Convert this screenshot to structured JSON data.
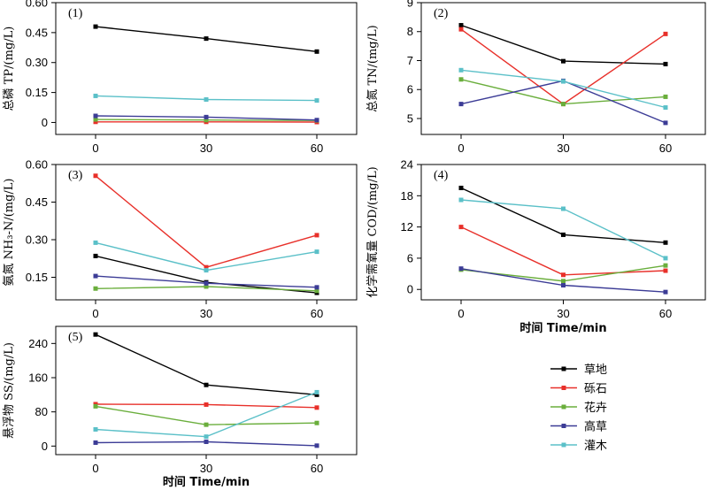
{
  "chart_data": [
    {
      "type": "line",
      "panel_label": "(1)",
      "ylabel": "总磷 TP/(mg/L)",
      "xlabel": "",
      "x": [
        0,
        30,
        60
      ],
      "xticks": [
        "0",
        "30",
        "60"
      ],
      "ylim": [
        -0.06,
        0.6
      ],
      "yticks": [
        0,
        0.15,
        0.3,
        0.45,
        0.6
      ],
      "ytick_labels": [
        "0",
        "0.15",
        "0.30",
        "0.45",
        "0.60"
      ],
      "series": [
        {
          "name": "草地",
          "color": "#000000",
          "values": [
            0.48,
            0.42,
            0.355
          ]
        },
        {
          "name": "砾石",
          "color": "#e8302a",
          "values": [
            0.003,
            0.003,
            0.002
          ]
        },
        {
          "name": "花卉",
          "color": "#6aae3c",
          "values": [
            0.015,
            0.012,
            0.01
          ]
        },
        {
          "name": "高草",
          "color": "#3c3c96",
          "values": [
            0.033,
            0.027,
            0.012
          ]
        },
        {
          "name": "灌木",
          "color": "#5bc0c8",
          "values": [
            0.133,
            0.115,
            0.11
          ]
        }
      ]
    },
    {
      "type": "line",
      "panel_label": "(2)",
      "ylabel": "总氮 TN/(mg/L)",
      "xlabel": "",
      "x": [
        0,
        30,
        60
      ],
      "xticks": [
        "0",
        "30",
        "60"
      ],
      "ylim": [
        4.45,
        9
      ],
      "yticks": [
        5,
        6,
        7,
        8,
        9
      ],
      "ytick_labels": [
        "5",
        "6",
        "7",
        "8",
        "9"
      ],
      "series": [
        {
          "name": "草地",
          "color": "#000000",
          "values": [
            8.22,
            6.98,
            6.88
          ]
        },
        {
          "name": "砾石",
          "color": "#e8302a",
          "values": [
            8.08,
            5.5,
            7.92
          ]
        },
        {
          "name": "花卉",
          "color": "#6aae3c",
          "values": [
            6.35,
            5.5,
            5.75
          ]
        },
        {
          "name": "高草",
          "color": "#3c3c96",
          "values": [
            5.5,
            6.3,
            4.85
          ]
        },
        {
          "name": "灌木",
          "color": "#5bc0c8",
          "values": [
            6.67,
            6.28,
            5.38
          ]
        }
      ]
    },
    {
      "type": "line",
      "panel_label": "(3)",
      "ylabel": "氨氮 NH₃-N/(mg/L)",
      "xlabel": "",
      "x": [
        0,
        30,
        60
      ],
      "xticks": [
        "0",
        "30",
        "60"
      ],
      "ylim": [
        0.06,
        0.6
      ],
      "yticks": [
        0.15,
        0.3,
        0.45,
        0.6
      ],
      "ytick_labels": [
        "0.15",
        "0.30",
        "0.45",
        "0.60"
      ],
      "series": [
        {
          "name": "草地",
          "color": "#000000",
          "values": [
            0.235,
            0.13,
            0.088
          ]
        },
        {
          "name": "砾石",
          "color": "#e8302a",
          "values": [
            0.555,
            0.19,
            0.318
          ]
        },
        {
          "name": "花卉",
          "color": "#6aae3c",
          "values": [
            0.105,
            0.113,
            0.096
          ]
        },
        {
          "name": "高草",
          "color": "#3c3c96",
          "values": [
            0.155,
            0.126,
            0.11
          ]
        },
        {
          "name": "灌木",
          "color": "#5bc0c8",
          "values": [
            0.288,
            0.178,
            0.252
          ]
        }
      ]
    },
    {
      "type": "line",
      "panel_label": "(4)",
      "ylabel": "化学需氧量 COD/(mg/L)",
      "xlabel": "时间 Time/min",
      "x": [
        0,
        30,
        60
      ],
      "xticks": [
        "0",
        "30",
        "60"
      ],
      "ylim": [
        -2,
        24
      ],
      "yticks": [
        0,
        6,
        12,
        18,
        24
      ],
      "ytick_labels": [
        "0",
        "6",
        "12",
        "18",
        "24"
      ],
      "series": [
        {
          "name": "草地",
          "color": "#000000",
          "values": [
            19.5,
            10.5,
            9.0
          ]
        },
        {
          "name": "砾石",
          "color": "#e8302a",
          "values": [
            12.0,
            2.8,
            3.6
          ]
        },
        {
          "name": "花卉",
          "color": "#6aae3c",
          "values": [
            3.8,
            1.6,
            4.6
          ]
        },
        {
          "name": "高草",
          "color": "#3c3c96",
          "values": [
            4.0,
            0.8,
            -0.5
          ]
        },
        {
          "name": "灌木",
          "color": "#5bc0c8",
          "values": [
            17.2,
            15.5,
            6.0
          ]
        }
      ]
    },
    {
      "type": "line",
      "panel_label": "(5)",
      "ylabel": "悬浮物 SS/(mg/L)",
      "xlabel": "时间 Time/min",
      "x": [
        0,
        30,
        60
      ],
      "xticks": [
        "0",
        "30",
        "60"
      ],
      "ylim": [
        -20,
        280
      ],
      "yticks": [
        0,
        80,
        160,
        240
      ],
      "ytick_labels": [
        "0",
        "80",
        "160",
        "240"
      ],
      "series": [
        {
          "name": "草地",
          "color": "#000000",
          "values": [
            261,
            143,
            120
          ]
        },
        {
          "name": "砾石",
          "color": "#e8302a",
          "values": [
            98,
            97,
            90
          ]
        },
        {
          "name": "花卉",
          "color": "#6aae3c",
          "values": [
            93,
            50,
            54
          ]
        },
        {
          "name": "高草",
          "color": "#3c3c96",
          "values": [
            8,
            10,
            1
          ]
        },
        {
          "name": "灌木",
          "color": "#5bc0c8",
          "values": [
            39,
            22,
            126
          ]
        }
      ]
    }
  ],
  "legend": [
    {
      "label": "草地",
      "color": "#000000"
    },
    {
      "label": "砾石",
      "color": "#e8302a"
    },
    {
      "label": "花卉",
      "color": "#6aae3c"
    },
    {
      "label": "高草",
      "color": "#3c3c96"
    },
    {
      "label": "灌木",
      "color": "#5bc0c8"
    }
  ]
}
